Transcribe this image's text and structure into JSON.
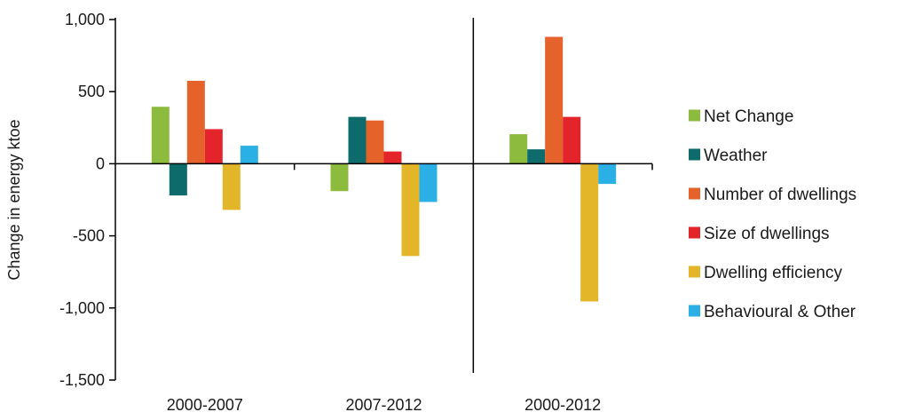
{
  "chart_data": {
    "type": "bar",
    "title": "",
    "xlabel": "",
    "ylabel": "Change in energy ktoe",
    "ylim": [
      -1500,
      1000
    ],
    "yticks": [
      -1500,
      -1000,
      -500,
      0,
      500,
      1000
    ],
    "ytick_labels": [
      "-1,500",
      "-1,000",
      "-500",
      "0",
      "500",
      "1,000"
    ],
    "categories": [
      "2000-2007",
      "2007-2012",
      "2000-2012"
    ],
    "series": [
      {
        "name": "Net Change",
        "color": "#8cbb3e",
        "values": [
          395,
          -190,
          205
        ]
      },
      {
        "name": "Weather",
        "color": "#0d6b6b",
        "values": [
          -220,
          325,
          100
        ]
      },
      {
        "name": "Number of dwellings",
        "color": "#e5622a",
        "values": [
          575,
          300,
          880
        ]
      },
      {
        "name": "Size of dwellings",
        "color": "#e3242b",
        "values": [
          240,
          85,
          325
        ]
      },
      {
        "name": "Dwelling efficiency",
        "color": "#e3b529",
        "values": [
          -320,
          -640,
          -955
        ]
      },
      {
        "name": "Behavioural & Other",
        "color": "#2bb0e6",
        "values": [
          125,
          -265,
          -140
        ]
      }
    ],
    "legend_position": "right",
    "grid": false
  }
}
